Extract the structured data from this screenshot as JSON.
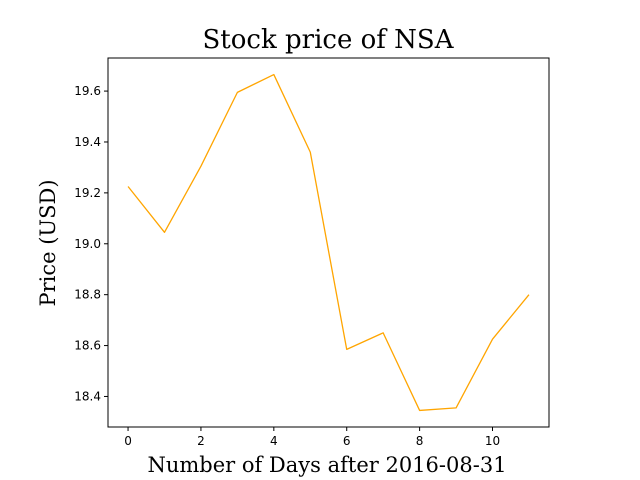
{
  "chart_data": {
    "type": "line",
    "title": "Stock price of NSA",
    "xlabel": "Number of Days after 2016-08-31",
    "ylabel": "Price (USD)",
    "xlim": [
      -0.55,
      11.55
    ],
    "ylim": [
      18.28,
      19.73
    ],
    "xticks": [
      0,
      2,
      4,
      6,
      8,
      10
    ],
    "yticks": [
      18.4,
      18.6,
      18.8,
      19.0,
      19.2,
      19.4,
      19.6
    ],
    "grid": false,
    "series": [
      {
        "color": "#ffa500",
        "x": [
          0,
          1,
          2,
          3,
          4,
          5,
          6,
          7,
          8,
          9,
          10,
          11
        ],
        "y": [
          19.225,
          19.045,
          19.305,
          19.595,
          19.665,
          19.36,
          18.585,
          18.65,
          18.345,
          18.355,
          18.625,
          18.8
        ]
      }
    ]
  }
}
